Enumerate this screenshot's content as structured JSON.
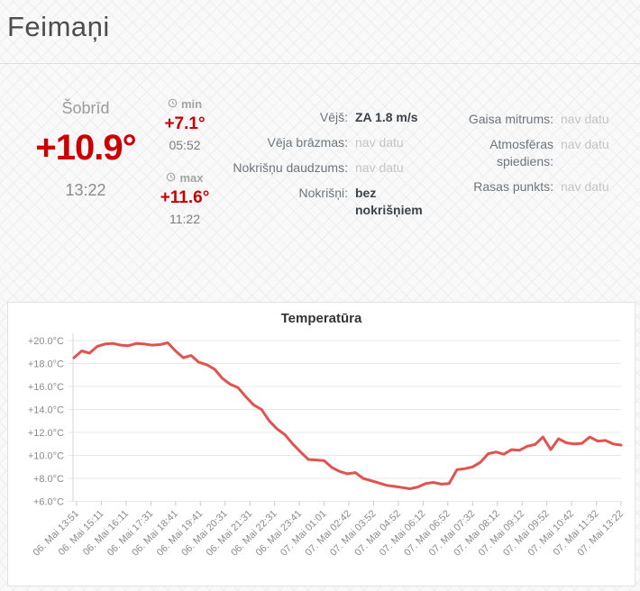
{
  "page": {
    "title": "Feimaņi"
  },
  "current": {
    "label": "Šobrīd",
    "temperature": "+10.9°",
    "time": "13:22",
    "min": {
      "label": "min",
      "temperature": "+7.1°",
      "time": "05:52"
    },
    "max": {
      "label": "max",
      "temperature": "+11.6°",
      "time": "11:22"
    }
  },
  "details": {
    "left": [
      {
        "label": "Vējš:",
        "value": "ZA 1.8 m/s",
        "style": "bold"
      },
      {
        "label": "Vēja brāzmas:",
        "value": "nav datu",
        "style": "muted"
      },
      {
        "label": "Nokrišņu daudzums:",
        "value": "nav datu",
        "style": "muted"
      },
      {
        "label": "Nokrišņi:",
        "value": "bez nokrišņiem",
        "style": "bold"
      }
    ],
    "right": [
      {
        "label": "Gaisa mitrums:",
        "value": "nav datu",
        "style": "muted"
      },
      {
        "label": "Atmosfēras spiediens:",
        "value": "nav datu",
        "style": "muted"
      },
      {
        "label": "Rasas punkts:",
        "value": "nav datu",
        "style": "muted"
      }
    ]
  },
  "colors": {
    "accent_red": "#cc0000",
    "line_red": "#e0534f",
    "grid_gray": "#e8e8e8"
  },
  "chart_data": {
    "type": "line",
    "title": "Temperatūra",
    "xlabel": "",
    "ylabel": "°C",
    "ylim": [
      6,
      20
    ],
    "grid": "horizontal",
    "legend": "none",
    "y_ticks": [
      "+20.0°C",
      "+18.0°C",
      "+16.0°C",
      "+14.0°C",
      "+12.0°C",
      "+10.0°C",
      "+8.0°C",
      "+6.0°C"
    ],
    "y_tick_values": [
      20,
      18,
      16,
      14,
      12,
      10,
      8,
      6
    ],
    "x_tick_labels": [
      "06. Mai 13:51",
      "06. Mai 15:11",
      "06. Mai 16:11",
      "06. Mai 17:31",
      "06. Mai 18:41",
      "06. Mai 19:41",
      "06. Mai 20:31",
      "06. Mai 21:31",
      "06. Mai 22:31",
      "06. Mai 23:41",
      "07. Mai 01:01",
      "07. Mai 02:42",
      "07. Mai 03:52",
      "07. Mai 04:52",
      "07. Mai 06:12",
      "07. Mai 06:52",
      "07. Mai 07:32",
      "07. Mai 08:12",
      "07. Mai 09:12",
      "07. Mai 09:52",
      "07. Mai 10:42",
      "07. Mai 11:32",
      "07. Mai 13:22"
    ],
    "series": [
      {
        "name": "Temperatūra",
        "color": "#e0534f",
        "values": [
          18.5,
          19.1,
          18.9,
          19.5,
          19.7,
          19.75,
          19.6,
          19.55,
          19.75,
          19.7,
          19.6,
          19.65,
          19.8,
          19.1,
          18.5,
          18.7,
          18.1,
          17.9,
          17.5,
          16.7,
          16.2,
          15.9,
          15.1,
          14.4,
          14.0,
          13.0,
          12.3,
          11.8,
          11.0,
          10.3,
          9.65,
          9.6,
          9.55,
          8.95,
          8.6,
          8.4,
          8.5,
          8.0,
          7.8,
          7.6,
          7.4,
          7.3,
          7.2,
          7.1,
          7.25,
          7.55,
          7.65,
          7.5,
          7.55,
          8.75,
          8.85,
          9.0,
          9.4,
          10.15,
          10.3,
          10.1,
          10.5,
          10.45,
          10.8,
          10.95,
          11.6,
          10.5,
          11.45,
          11.1,
          11.0,
          11.05,
          11.6,
          11.25,
          11.3,
          11.0,
          10.9
        ]
      }
    ]
  }
}
